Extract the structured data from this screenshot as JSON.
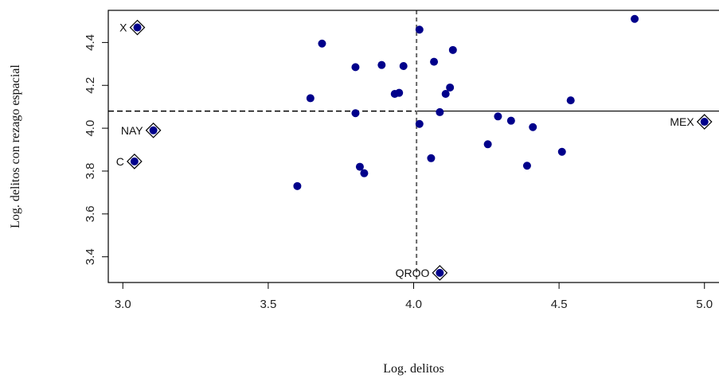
{
  "chart_data": {
    "type": "scatter",
    "title": "",
    "xlabel": "Log. delitos",
    "ylabel": "Log. delitos con rezago espacial",
    "xlim": [
      2.95,
      5.05
    ],
    "ylim": [
      3.28,
      4.55
    ],
    "xticks": [
      3.0,
      3.5,
      4.0,
      4.5,
      5.0
    ],
    "xtick_labels": [
      "3.0",
      "3.5",
      "4.0",
      "4.5",
      "5.0"
    ],
    "yticks": [
      3.4,
      3.6,
      3.8,
      4.0,
      4.2,
      4.4
    ],
    "ytick_labels": [
      "3.4",
      "3.6",
      "3.8",
      "4.0",
      "4.2",
      "4.4"
    ],
    "grid": false,
    "point_color": "#00008B",
    "mean_x": 4.01,
    "mean_y": 4.08,
    "regression": {
      "slope": 0.0,
      "intercept": 4.08
    },
    "points": [
      {
        "x": 3.685,
        "y": 4.395
      },
      {
        "x": 3.645,
        "y": 4.14
      },
      {
        "x": 3.8,
        "y": 4.285
      },
      {
        "x": 3.89,
        "y": 4.295
      },
      {
        "x": 3.965,
        "y": 4.29
      },
      {
        "x": 3.935,
        "y": 4.16
      },
      {
        "x": 3.95,
        "y": 4.165
      },
      {
        "x": 3.8,
        "y": 4.07
      },
      {
        "x": 3.815,
        "y": 3.82
      },
      {
        "x": 3.83,
        "y": 3.79
      },
      {
        "x": 3.6,
        "y": 3.73
      },
      {
        "x": 4.02,
        "y": 4.46
      },
      {
        "x": 4.07,
        "y": 4.31
      },
      {
        "x": 4.135,
        "y": 4.365
      },
      {
        "x": 4.125,
        "y": 4.19
      },
      {
        "x": 4.11,
        "y": 4.16
      },
      {
        "x": 4.09,
        "y": 4.075
      },
      {
        "x": 4.02,
        "y": 4.02
      },
      {
        "x": 4.06,
        "y": 3.86
      },
      {
        "x": 4.29,
        "y": 4.055
      },
      {
        "x": 4.335,
        "y": 4.035
      },
      {
        "x": 4.41,
        "y": 4.005
      },
      {
        "x": 4.255,
        "y": 3.925
      },
      {
        "x": 4.39,
        "y": 3.825
      },
      {
        "x": 4.51,
        "y": 3.89
      },
      {
        "x": 4.54,
        "y": 4.13
      },
      {
        "x": 4.76,
        "y": 4.51
      }
    ],
    "influential_points": [
      {
        "x": 3.05,
        "y": 4.47,
        "label": "X",
        "label_side": "left"
      },
      {
        "x": 3.105,
        "y": 3.99,
        "label": "NAY",
        "label_side": "left"
      },
      {
        "x": 3.04,
        "y": 3.845,
        "label": "C",
        "label_side": "left"
      },
      {
        "x": 5.0,
        "y": 4.03,
        "label": "MEX",
        "label_side": "left"
      },
      {
        "x": 4.09,
        "y": 3.325,
        "label": "QROO",
        "label_side": "left"
      }
    ]
  }
}
